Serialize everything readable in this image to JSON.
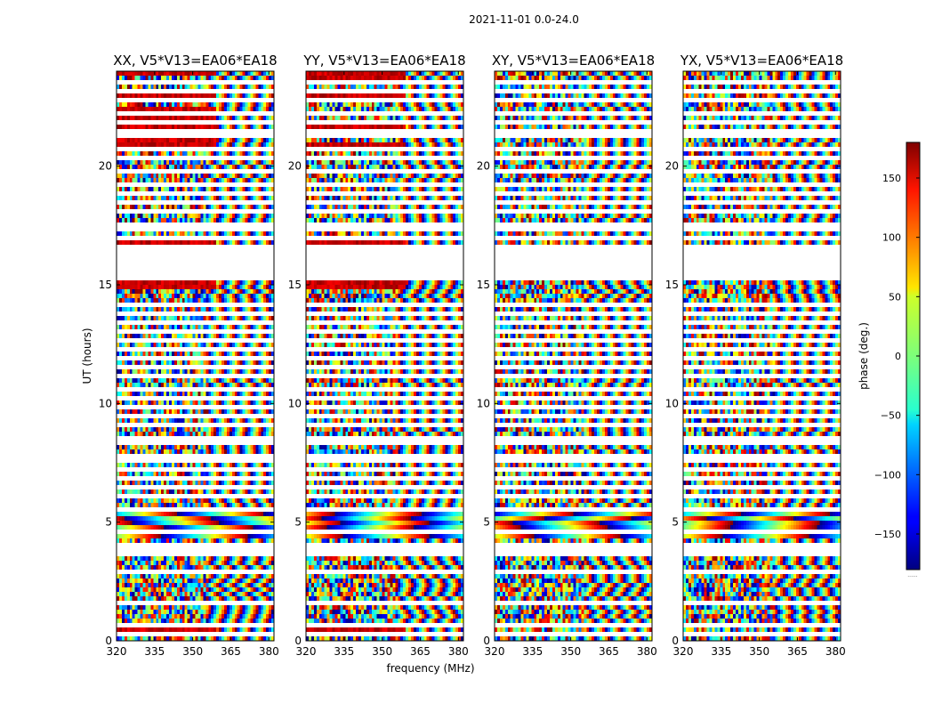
{
  "chart_data": {
    "type": "heatmap",
    "title": "2021-11-01 0.0-24.0",
    "xlabel": "frequency (MHz)",
    "ylabel": "UT (hours)",
    "xlim": [
      320,
      382
    ],
    "ylim": [
      0,
      24
    ],
    "x_ticks": [
      320,
      335,
      350,
      365,
      380
    ],
    "y_ticks": [
      0,
      5,
      10,
      15,
      20
    ],
    "panels": [
      {
        "name": "XX, V5*V13=EA06*EA18"
      },
      {
        "name": "YY, V5*V13=EA06*EA18"
      },
      {
        "name": "XY, V5*V13=EA06*EA18"
      },
      {
        "name": "YX, V5*V13=EA06*EA18"
      }
    ],
    "colorbar": {
      "label": "phase (deg.)",
      "range": [
        -180,
        180
      ],
      "ticks": [
        150,
        100,
        50,
        0,
        -50,
        -100,
        -150
      ],
      "colormap": "jet",
      "footnote": "......"
    }
  }
}
